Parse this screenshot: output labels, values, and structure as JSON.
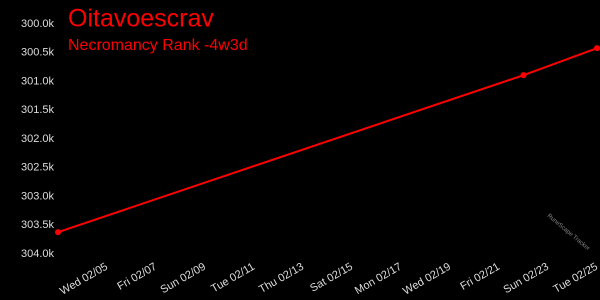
{
  "chart_data": {
    "type": "line",
    "title": "Oitavoescrav",
    "subtitle": "Necromancy Rank -4w3d",
    "watermark": "RuneScape Tracker",
    "x": [
      "02/03",
      "02/22",
      "02/25"
    ],
    "series": [
      {
        "name": "Necromancy Rank",
        "color": "#ff0000",
        "values": [
          303620,
          300890,
          300420
        ]
      }
    ],
    "xlim": [
      "02/03",
      "02/25"
    ],
    "xticks": [
      {
        "value": "02/05",
        "label": "Wed 02/05"
      },
      {
        "value": "02/07",
        "label": "Fri 02/07"
      },
      {
        "value": "02/09",
        "label": "Sun 02/09"
      },
      {
        "value": "02/11",
        "label": "Tue 02/11"
      },
      {
        "value": "02/13",
        "label": "Thu 02/13"
      },
      {
        "value": "02/15",
        "label": "Sat 02/15"
      },
      {
        "value": "02/17",
        "label": "Mon 02/17"
      },
      {
        "value": "02/19",
        "label": "Wed 02/19"
      },
      {
        "value": "02/21",
        "label": "Fri 02/21"
      },
      {
        "value": "02/23",
        "label": "Sun 02/23"
      },
      {
        "value": "02/25",
        "label": "Tue 02/25"
      }
    ],
    "ylim": [
      304000,
      300000
    ],
    "yticks": [
      {
        "value": 300000,
        "label": "300.0k"
      },
      {
        "value": 300500,
        "label": "300.5k"
      },
      {
        "value": 301000,
        "label": "301.0k"
      },
      {
        "value": 301500,
        "label": "301.5k"
      },
      {
        "value": 302000,
        "label": "302.0k"
      },
      {
        "value": 302500,
        "label": "302.5k"
      },
      {
        "value": 303000,
        "label": "303.0k"
      },
      {
        "value": 303500,
        "label": "303.5k"
      },
      {
        "value": 304000,
        "label": "304.0k"
      }
    ]
  }
}
